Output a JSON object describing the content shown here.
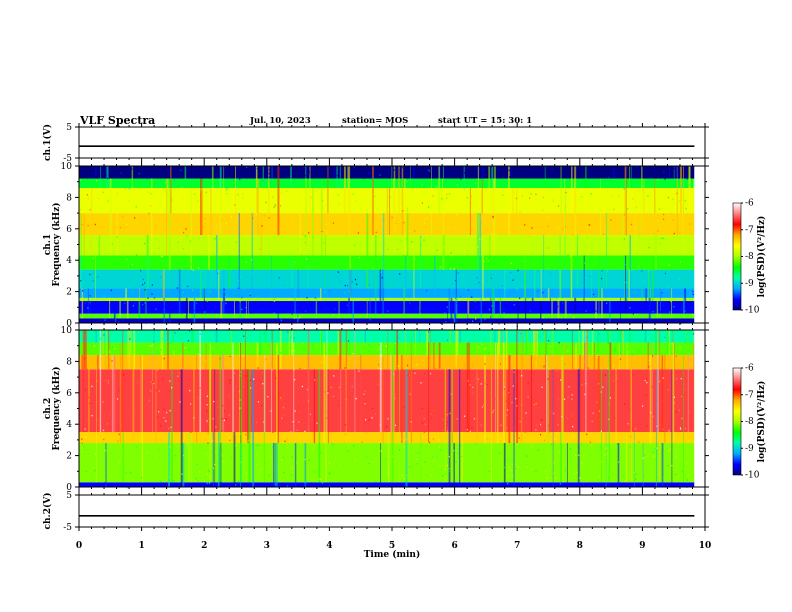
{
  "header": {
    "title": "VLF Spectra",
    "date": "Jul. 10, 2023",
    "station": "station= MOS",
    "start": "start UT =  15: 30: 1"
  },
  "chart_data": [
    {
      "type": "line",
      "panel": "ch1-waveform",
      "ylabel": "ch.1(V)",
      "ylim": [
        -5,
        5
      ],
      "yticks": [
        "5",
        "-5"
      ],
      "x": [
        0,
        9.83
      ],
      "values": [
        -1.2,
        -1.2
      ]
    },
    {
      "type": "heatmap",
      "panel": "ch1-spectrogram",
      "ylabel": "ch.1\nFrequency (kHz)",
      "ylim": [
        0,
        10
      ],
      "yticks": [
        "0",
        "2",
        "4",
        "6",
        "8",
        "10"
      ],
      "xlim": [
        0,
        9.83
      ],
      "band_profile_khz": [
        {
          "range": [
            0.0,
            0.3
          ],
          "level": -9.8
        },
        {
          "range": [
            0.3,
            0.6
          ],
          "level": -8.2
        },
        {
          "range": [
            0.6,
            1.4
          ],
          "level": -9.6
        },
        {
          "range": [
            1.4,
            1.6
          ],
          "level": -8.0
        },
        {
          "range": [
            1.6,
            2.2
          ],
          "level": -9.2
        },
        {
          "range": [
            2.2,
            3.4
          ],
          "level": -9.0
        },
        {
          "range": [
            3.4,
            4.3
          ],
          "level": -8.3
        },
        {
          "range": [
            4.3,
            5.6
          ],
          "level": -7.9
        },
        {
          "range": [
            5.6,
            7.0
          ],
          "level": -7.4
        },
        {
          "range": [
            7.0,
            8.6
          ],
          "level": -7.7
        },
        {
          "range": [
            8.6,
            9.2
          ],
          "level": -8.5
        },
        {
          "range": [
            9.2,
            10.0
          ],
          "level": -10.0
        }
      ]
    },
    {
      "type": "heatmap",
      "panel": "ch2-spectrogram",
      "ylabel": "ch.2\nFrequency (kHz)",
      "ylim": [
        0,
        10
      ],
      "yticks": [
        "0",
        "2",
        "4",
        "6",
        "8",
        "10"
      ],
      "xlim": [
        0,
        9.83
      ],
      "band_profile_khz": [
        {
          "range": [
            0.0,
            0.3
          ],
          "level": -9.6
        },
        {
          "range": [
            0.3,
            2.8
          ],
          "level": -8.1
        },
        {
          "range": [
            2.8,
            3.5
          ],
          "level": -7.4
        },
        {
          "range": [
            3.5,
            7.5
          ],
          "level": -6.6
        },
        {
          "range": [
            7.5,
            8.4
          ],
          "level": -7.3
        },
        {
          "range": [
            8.4,
            9.2
          ],
          "level": -8.2
        },
        {
          "range": [
            9.2,
            10.0
          ],
          "level": -8.8
        }
      ]
    },
    {
      "type": "line",
      "panel": "ch2-waveform",
      "ylabel": "ch.2(V)",
      "ylim": [
        -5,
        5
      ],
      "yticks": [
        "5",
        "-5"
      ],
      "x": [
        0,
        9.83
      ],
      "values": [
        -1.5,
        -1.5
      ]
    }
  ],
  "xaxis": {
    "label": "Time (min)",
    "xlim": [
      0,
      10
    ],
    "ticks": [
      "0",
      "1",
      "2",
      "3",
      "4",
      "5",
      "6",
      "7",
      "8",
      "9",
      "10"
    ]
  },
  "colorbar": {
    "label": "log(PSD)(V²/Hz)",
    "range": [
      -10,
      -6
    ],
    "ticks": [
      "-6",
      "-7",
      "-8",
      "-9",
      "-10"
    ],
    "stops": [
      "#000080",
      "#0000ff",
      "#00aaff",
      "#00ffaa",
      "#00ff00",
      "#aaff00",
      "#ffff00",
      "#ffaa00",
      "#ff0000",
      "#ff8080",
      "#ffffff"
    ]
  }
}
